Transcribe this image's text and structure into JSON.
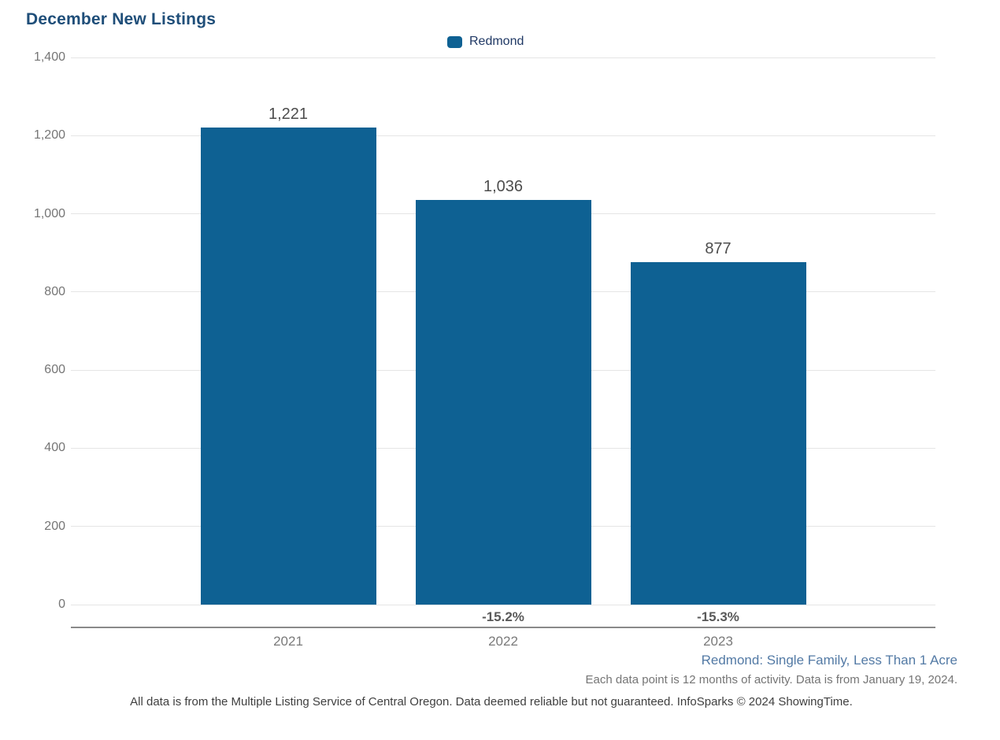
{
  "title": "December New Listings",
  "legend": {
    "label": "Redmond",
    "swatch_color": "#0e6193"
  },
  "chart_data": {
    "type": "bar",
    "title": "December New Listings",
    "categories": [
      "2021",
      "2022",
      "2023"
    ],
    "series": [
      {
        "name": "Redmond",
        "values": [
          1221,
          1036,
          877
        ]
      }
    ],
    "value_labels": [
      "1,221",
      "1,036",
      "877"
    ],
    "pct_change_labels": [
      "",
      "-15.2%",
      "-15.3%"
    ],
    "y_tick_labels": [
      "1,400",
      "1,200",
      "1,000",
      "800",
      "600",
      "400",
      "200",
      "0"
    ],
    "y_tick_values": [
      1400,
      1200,
      1000,
      800,
      600,
      400,
      200,
      0
    ],
    "ylim": [
      0,
      1400
    ],
    "xlabel": "",
    "ylabel": "",
    "grid": true,
    "legend_position": "top-center",
    "bar_color": "#0e6193",
    "gridline_color": "#e5e5e5",
    "axis_line_color": "#8a8a8a"
  },
  "annotations": {
    "segment_note": "Redmond: Single Family, Less Than 1 Acre",
    "data_note": "Each data point is 12 months of activity. Data is from January 19, 2024.",
    "disclaimer": "All data is from the Multiple Listing Service of Central Oregon. Data deemed reliable but not guaranteed. InfoSparks © 2024 ShowingTime."
  },
  "colors": {
    "title": "#1f4e79",
    "bar": "#0e6193",
    "value_label": "#4d4d4d",
    "pct_label": "#595959",
    "tick_label": "#757575",
    "segment_note": "#537aa5"
  }
}
